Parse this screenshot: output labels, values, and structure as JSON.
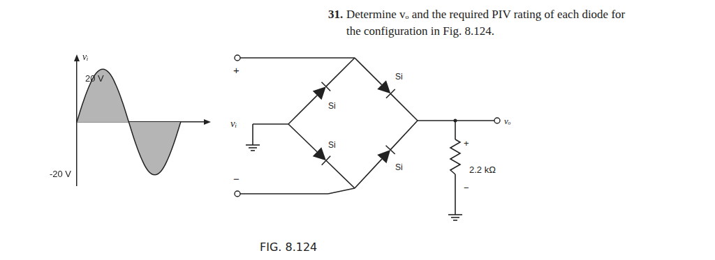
{
  "problem": {
    "number": "31.",
    "lines": [
      "Determine vₒ and the required PIV rating of each diode for",
      "the configuration in Fig. 8.124."
    ]
  },
  "chart_data": {
    "type": "line",
    "y_label": "vᵢ",
    "categories": [
      null,
      null,
      null,
      null,
      null,
      null,
      null,
      null,
      null,
      null,
      null,
      null,
      null,
      null,
      null,
      null,
      null,
      null,
      null,
      null,
      null
    ],
    "values": [
      0,
      7.7,
      14.1,
      18.5,
      20,
      18.5,
      14.1,
      7.7,
      0,
      -7.7,
      -14.1,
      -18.5,
      -20,
      -18.5,
      -14.1,
      -7.7,
      0,
      null,
      null,
      null,
      null
    ],
    "color": "#b5b5b5",
    "ylim": [
      -24,
      24
    ],
    "tick_labels": false,
    "grid": false,
    "annotations": [
      {
        "text": "20 V",
        "value": 20
      },
      {
        "text": "-20 V",
        "value": -20
      }
    ]
  },
  "circuit": {
    "input_label": "vᵢ",
    "input_plus": "+",
    "input_minus": "−",
    "diodes": [
      {
        "position": "top-left",
        "label": "Si"
      },
      {
        "position": "top-right",
        "label": "Si"
      },
      {
        "position": "bottom-left",
        "label": "Si"
      },
      {
        "position": "bottom-right",
        "label": "Si"
      }
    ],
    "resistor": "2.2 kΩ",
    "output_label": "vₒ",
    "output_plus": "+",
    "output_minus": "−"
  },
  "figure_label": "FIG. 8.124"
}
